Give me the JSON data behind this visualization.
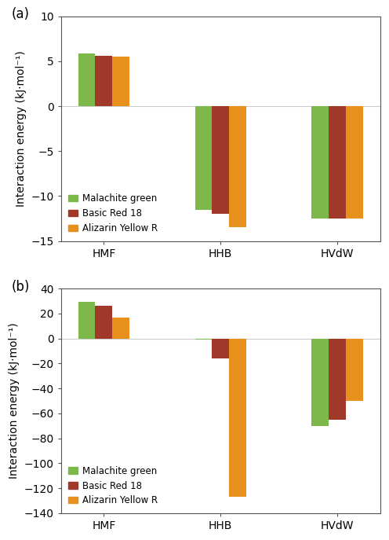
{
  "panel_a": {
    "categories": [
      "HMF",
      "HHB",
      "HVdW"
    ],
    "series": {
      "Malachite green": [
        5.9,
        -11.5,
        -12.5
      ],
      "Basic Red 18": [
        5.6,
        -12.0,
        -12.5
      ],
      "Alizarin Yellow R": [
        5.5,
        -13.5,
        -12.5
      ]
    },
    "ylim": [
      -15,
      10
    ],
    "yticks": [
      -15,
      -10,
      -5,
      0,
      5,
      10
    ],
    "ylabel": "Interaction energy (kJ·mol⁻¹)",
    "label": "(a)"
  },
  "panel_b": {
    "categories": [
      "HMF",
      "HHB",
      "HVdW"
    ],
    "series": {
      "Malachite green": [
        29.0,
        -1.0,
        -70.0
      ],
      "Basic Red 18": [
        26.0,
        -16.0,
        -65.0
      ],
      "Alizarin Yellow R": [
        17.0,
        -127.0,
        -50.0
      ]
    },
    "ylim": [
      -140,
      40
    ],
    "yticks": [
      -140,
      -120,
      -100,
      -80,
      -60,
      -40,
      -20,
      0,
      20,
      40
    ],
    "ylabel": "Interaction energy (kJ·mol⁻¹)",
    "label": "(b)"
  },
  "colors": {
    "Malachite green": "#7db84a",
    "Basic Red 18": "#a0392a",
    "Alizarin Yellow R": "#e8901c"
  },
  "bar_width": 0.22,
  "figsize": [
    4.96,
    6.87
  ],
  "dpi": 100,
  "legend_labels": [
    "Malachite green",
    "Basic Red 18",
    "Alizarin Yellow R"
  ],
  "x_positions": [
    0,
    1.5,
    3.0
  ],
  "xlim": [
    -0.55,
    3.55
  ]
}
